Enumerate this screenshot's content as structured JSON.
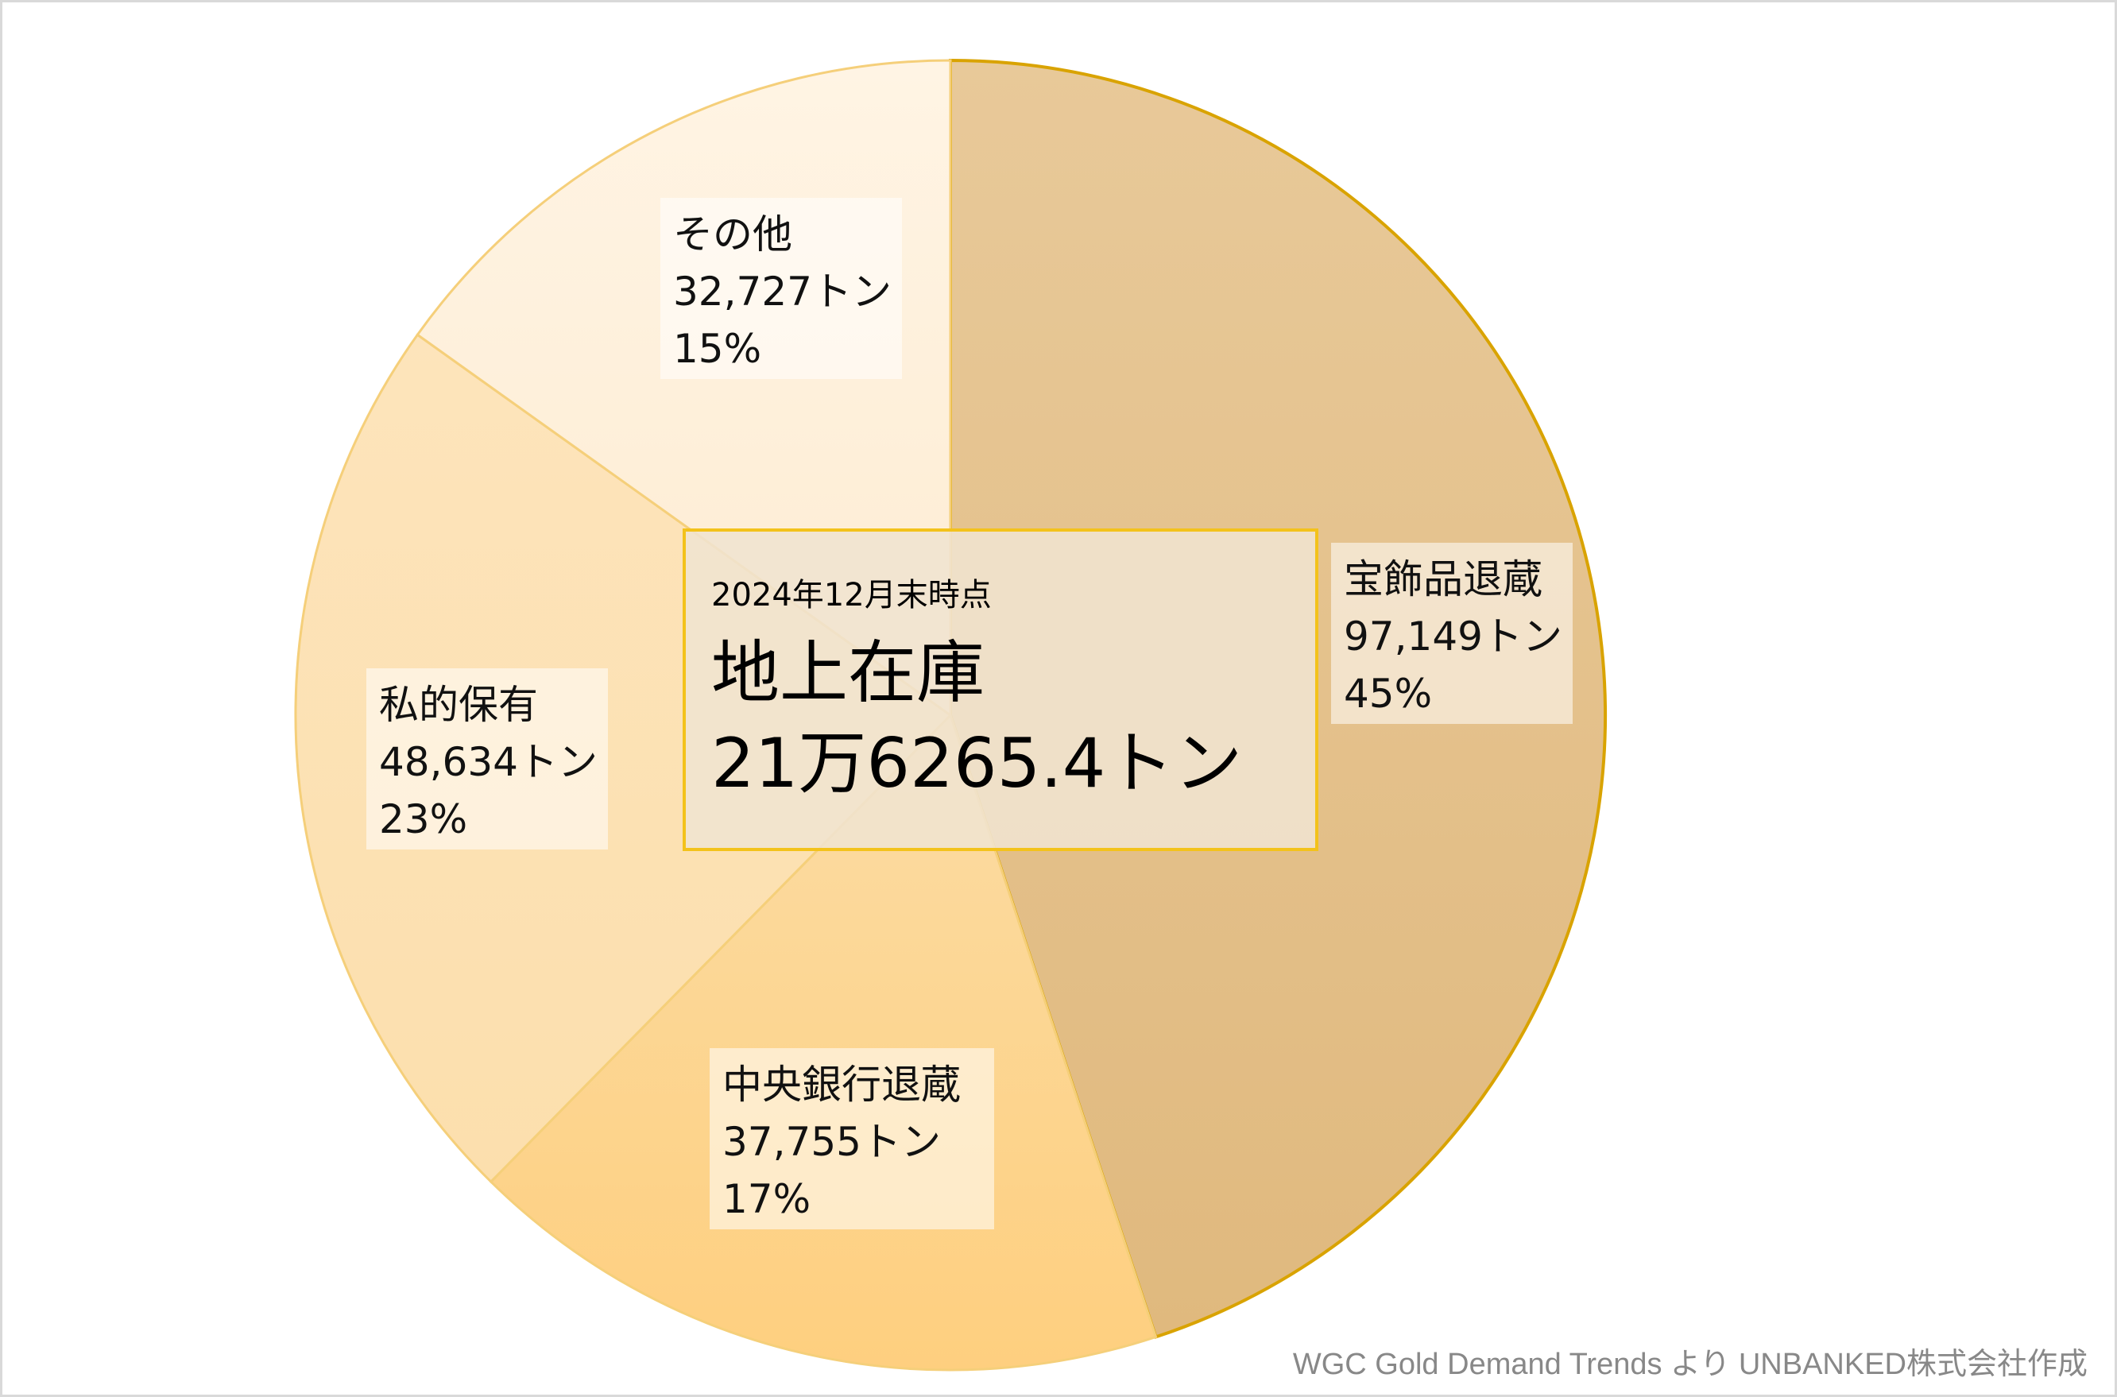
{
  "chart_data": {
    "type": "pie",
    "title": "",
    "slices": [
      {
        "name": "宝飾品退蔵",
        "value_label": "97,149トン",
        "percent_label": "45%",
        "value": 97149,
        "color": "#e2bd84",
        "gradient_to": "#e8c999"
      },
      {
        "name": "中央銀行退蔵",
        "value_label": "37,755トン",
        "percent_label": "17%",
        "value": 37755,
        "color": "#fecf7f",
        "gradient_to": "#fbdca4"
      },
      {
        "name": "私的保有",
        "value_label": "48,634トン",
        "percent_label": "23%",
        "value": 48634,
        "color": "#fcdfad",
        "gradient_to": "#fde4bb"
      },
      {
        "name": "その他",
        "value_label": "32,727トン",
        "percent_label": "15%",
        "value": 32727,
        "color": "#fdecd2",
        "gradient_to": "#fff4e4"
      }
    ],
    "center_annotation": {
      "note": "2024年12月末時点",
      "title": "地上在庫",
      "total": "21万6265.4トン"
    },
    "credit": "WGC Gold Demand Trends  より  UNBANKED株式会社作成",
    "colors": {
      "edge": "#f5cf7a",
      "jewelry_edge": "#d9a300",
      "center_border": "#f3c21b"
    }
  }
}
